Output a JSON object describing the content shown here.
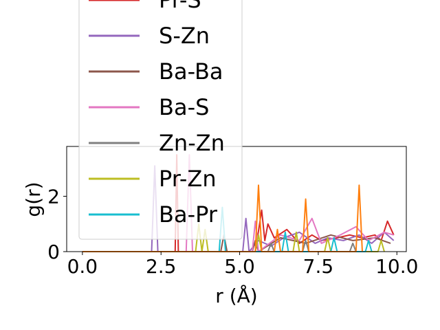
{
  "chart_data": {
    "type": "line",
    "title": "",
    "xlabel": "r (Å)",
    "ylabel": "g(r)",
    "xlim": [
      -0.5,
      10.3
    ],
    "ylim": [
      0,
      3.8
    ],
    "xticks": [
      0.0,
      2.5,
      5.0,
      7.5,
      10.0
    ],
    "xtick_labels": [
      "0.0",
      "2.5",
      "5.0",
      "7.5",
      "10.0"
    ],
    "yticks": [
      0,
      2
    ],
    "ytick_labels": [
      "0",
      "2"
    ],
    "grid": false,
    "legend_position": "upper-left, overflowing above the axes",
    "series": [
      {
        "name": "Pr-S",
        "color": "#d62728",
        "x": [
          0,
          2.95,
          3.0,
          3.05,
          3.6,
          5.5,
          5.7,
          5.8,
          5.9,
          6.1,
          6.5,
          6.9,
          7.3,
          7.6,
          8.1,
          8.5,
          8.9,
          9.3,
          9.5,
          9.7,
          9.9
        ],
        "y": [
          0,
          0,
          3.5,
          0,
          0,
          0,
          1.5,
          0.4,
          1.0,
          0.5,
          0.8,
          0.3,
          0.6,
          0.4,
          0.5,
          0.6,
          0.5,
          0.6,
          0.4,
          1.1,
          0.6
        ]
      },
      {
        "name": "S-Zn",
        "color": "#9467bd",
        "x": [
          0,
          2.2,
          2.3,
          2.4,
          5.1,
          5.2,
          5.3,
          5.6,
          6.0,
          6.4,
          6.9,
          7.4,
          7.8,
          8.3,
          8.8,
          9.2,
          9.6,
          9.9
        ],
        "y": [
          0,
          0,
          3.1,
          0,
          0,
          1.2,
          0,
          0.4,
          0.2,
          0.5,
          0.7,
          0.3,
          0.5,
          0.4,
          0.6,
          0.3,
          0.7,
          0.4
        ]
      },
      {
        "name": "Ba-Ba",
        "color": "#8c564b",
        "x": [
          0,
          4.4,
          4.5,
          4.6,
          5.4,
          5.5,
          5.6,
          6.3,
          7.1,
          7.9,
          8.6,
          9.3,
          9.8
        ],
        "y": [
          0,
          0,
          0.6,
          0,
          0,
          0.4,
          0,
          0.5,
          0.3,
          0.6,
          0.4,
          0.5,
          0.3
        ]
      },
      {
        "name": "Ba-S",
        "color": "#e377c2",
        "x": [
          0,
          3.3,
          3.4,
          3.5,
          5.4,
          5.5,
          5.6,
          6.3,
          6.9,
          7.3,
          7.6,
          8.2,
          8.7,
          9.1,
          9.6,
          9.9
        ],
        "y": [
          0,
          0,
          3.5,
          0,
          0,
          1.1,
          0,
          0.6,
          0.4,
          1.2,
          0.3,
          0.6,
          0.9,
          0.4,
          0.7,
          0.6
        ]
      },
      {
        "name": "Zn-Zn",
        "color": "#7f7f7f",
        "x": [
          0,
          5.9,
          6.0,
          6.1,
          7.0,
          7.1,
          7.2,
          8.5,
          8.6,
          8.7
        ],
        "y": [
          0,
          0,
          0.3,
          0,
          0,
          0.4,
          0,
          0,
          0.3,
          0
        ]
      },
      {
        "name": "Pr-Zn",
        "color": "#bcbd22",
        "x": [
          0,
          3.6,
          3.7,
          3.8,
          3.9,
          4.0,
          4.1,
          5.5,
          5.6,
          5.7,
          6.7,
          6.8,
          6.9,
          7.7,
          7.8,
          7.9,
          9.4,
          9.5,
          9.6
        ],
        "y": [
          0,
          0,
          1.0,
          0,
          0.8,
          0,
          0,
          0,
          0.6,
          0,
          0,
          0.7,
          0,
          0,
          0.5,
          0,
          0,
          0.4,
          0
        ]
      },
      {
        "name": "Ba-Pr",
        "color": "#17becf",
        "x": [
          0,
          4.35,
          4.45,
          4.55,
          6.35,
          6.45,
          6.55,
          7.9,
          8.0,
          8.1,
          9.0,
          9.1,
          9.2
        ],
        "y": [
          0,
          0,
          1.6,
          0,
          0,
          0.7,
          0,
          0,
          0.5,
          0,
          0,
          0.4,
          0
        ]
      },
      {
        "name": "",
        "color": "#ff7f0e",
        "x": [
          0,
          5.5,
          5.6,
          5.7,
          6.1,
          6.2,
          6.3,
          7.0,
          7.1,
          7.2,
          8.7,
          8.8,
          8.9
        ],
        "y": [
          0,
          0,
          2.4,
          0,
          0,
          0.8,
          0,
          0,
          1.9,
          0,
          0,
          2.4,
          0
        ]
      }
    ]
  }
}
